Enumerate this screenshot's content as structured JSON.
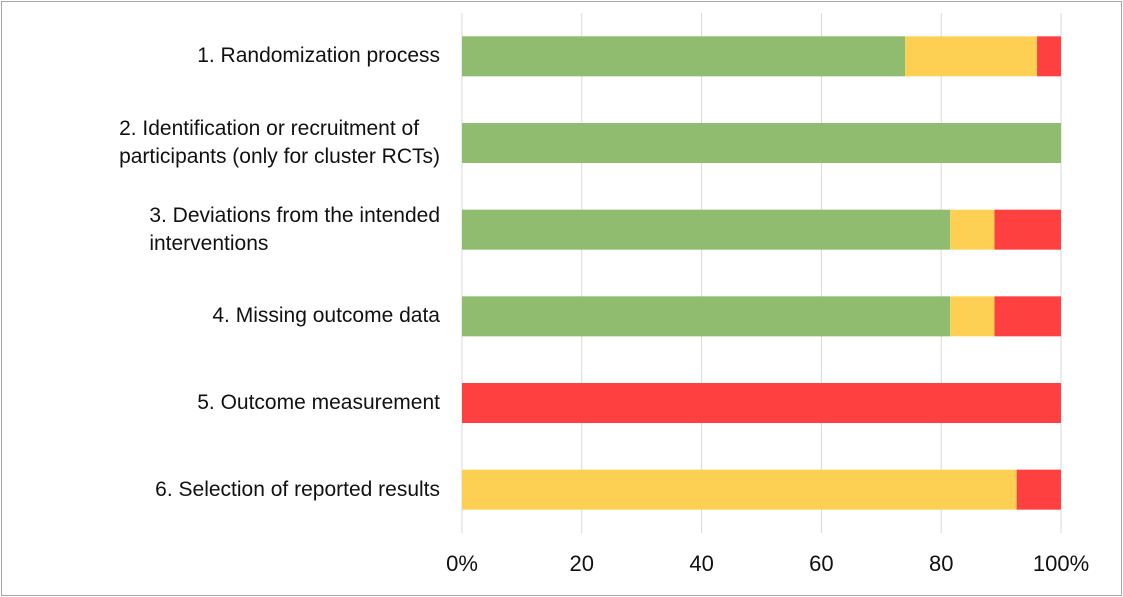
{
  "chart_data": {
    "type": "stacked-bar-horizontal",
    "categories": [
      "1. Randomization process",
      "2. Identification or recruitment of\nparticipants (only for cluster RCTs)",
      "3. Deviations from the intended\ninterventions",
      "4. Missing outcome data",
      "5. Outcome measurement",
      "6. Selection of reported results"
    ],
    "series": [
      {
        "color": "#8fbc6e",
        "values": [
          74,
          100,
          81.5,
          81.5,
          0,
          0
        ]
      },
      {
        "color": "#fdd054",
        "values": [
          22,
          0,
          7.4,
          7.4,
          0,
          92.6
        ]
      },
      {
        "color": "#fe4040",
        "values": [
          4,
          0,
          11.1,
          11.1,
          100,
          7.4
        ]
      }
    ],
    "xlim": [
      0,
      100
    ],
    "xticks": [
      {
        "value": 0,
        "label": "0%"
      },
      20,
      40,
      60,
      80,
      {
        "value": 100,
        "label": "100%"
      }
    ],
    "grid": true
  }
}
